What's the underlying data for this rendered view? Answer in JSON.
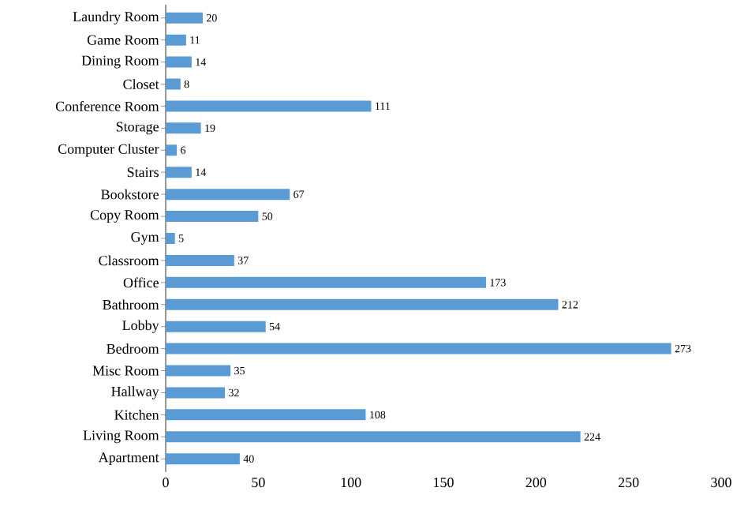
{
  "chart_data": {
    "type": "bar",
    "orientation": "horizontal",
    "categories": [
      "Laundry Room",
      "Game Room",
      "Dining Room",
      "Closet",
      "Conference Room",
      "Storage",
      "Computer Cluster",
      "Stairs",
      "Bookstore",
      "Copy Room",
      "Gym",
      "Classroom",
      "Office",
      "Bathroom",
      "Lobby",
      "Bedroom",
      "Misc Room",
      "Hallway",
      "Kitchen",
      "Living Room",
      "Apartment"
    ],
    "values": [
      20,
      11,
      14,
      8,
      111,
      19,
      6,
      14,
      67,
      50,
      5,
      37,
      173,
      212,
      54,
      273,
      35,
      32,
      108,
      224,
      40
    ],
    "color": "#5b9bd5",
    "data_labels": true,
    "xlim": [
      0,
      300
    ],
    "xticks": [
      0,
      50,
      100,
      150,
      200,
      250,
      300
    ],
    "grid": false
  }
}
